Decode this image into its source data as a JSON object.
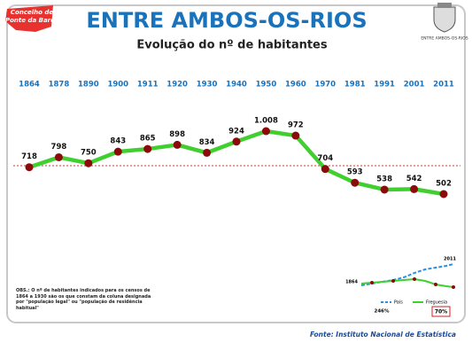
{
  "chart_data": {
    "type": "line",
    "title": "ENTRE AMBOS-OS-RIOS",
    "subtitle": "Evolução do nº de habitantes",
    "logo_text": [
      "Concelho de",
      "Ponte da Barca"
    ],
    "crest_text": "ENTRE AMBOS-OS-RIOS",
    "categories": [
      "1864",
      "1878",
      "1890",
      "1900",
      "1911",
      "1920",
      "1930",
      "1940",
      "1950",
      "1960",
      "1970",
      "1981",
      "1991",
      "2001",
      "2011"
    ],
    "series": [
      {
        "name": "Habitantes",
        "color": "#3fcf2f",
        "marker_color": "#8b0a0a",
        "values": [
          718,
          798,
          750,
          843,
          865,
          898,
          834,
          924,
          1008,
          972,
          704,
          593,
          538,
          542,
          502
        ],
        "value_labels": [
          "718",
          "798",
          "750",
          "843",
          "865",
          "898",
          "834",
          "924",
          "1.008",
          "972",
          "704",
          "593",
          "538",
          "542",
          "502"
        ]
      }
    ],
    "reference_line": {
      "value": 730,
      "color": "#e03030"
    },
    "note": "OBS.: O nº de habitantes indicados para os censos de 1864 a 1930 são os que constam da coluna designada por \"população legal\" ou \"população de residência habitual\"",
    "source": "Fonte: Instituto Nacional de Estatística",
    "inset": {
      "start_label": "1864",
      "end_label": "2011",
      "legend": [
        "País",
        "Freguesia"
      ],
      "pais_change": "246%",
      "freguesia_change": "70%"
    }
  }
}
